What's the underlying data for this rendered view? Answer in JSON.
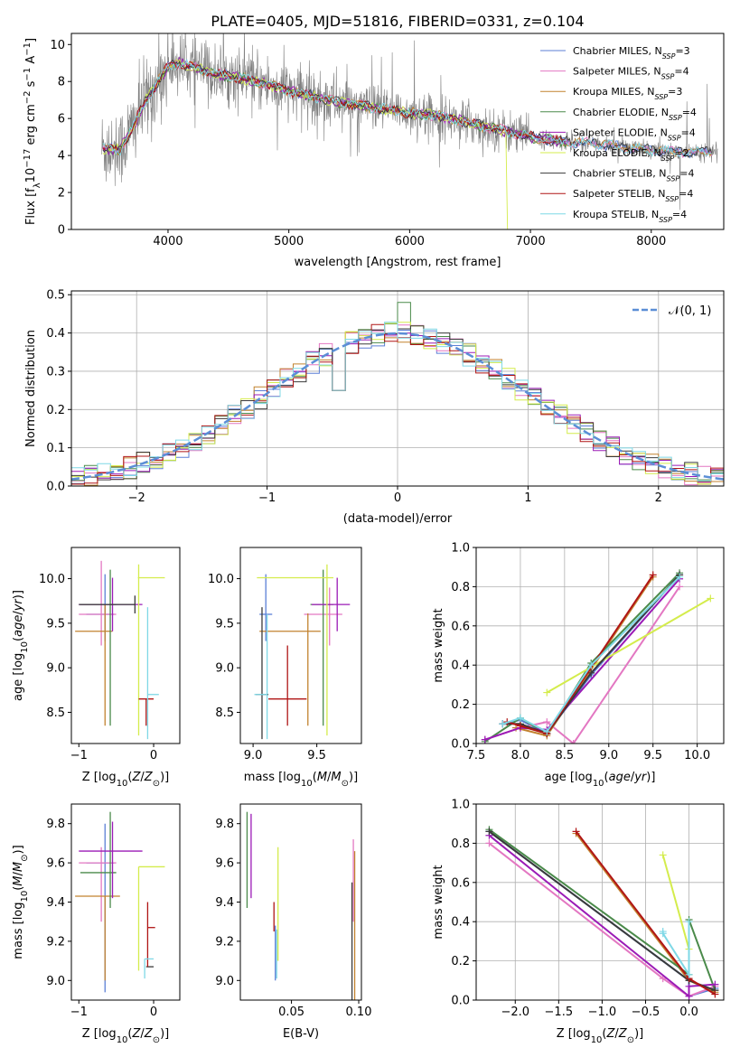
{
  "palette": {
    "Chabrier MILES": "#5b7fd6",
    "Salpeter MILES": "#e377c2",
    "Kroupa MILES": "#c2822f",
    "Chabrier ELODIE": "#4a8a4a",
    "Salpeter ELODIE": "#9b1bb6",
    "Kroupa ELODIE": "#d4ec4c",
    "Chabrier STELIB": "#3a3a3a",
    "Salpeter STELIB": "#b01515",
    "Kroupa STELIB": "#7fd8e6",
    "data": "#808080",
    "normal": "#5b8ed6"
  },
  "chart_data": [
    {
      "id": "spectrum",
      "type": "line",
      "title": "PLATE=0405, MJD=51816, FIBERID=0331, z=0.104",
      "xlabel": "wavelength [Angstrom, rest frame]",
      "ylabel": "Flux [f_λ10^-17 erg cm^-2 s^-1 A^-1]",
      "xlim": [
        3200,
        8600
      ],
      "ylim": [
        0,
        10.6
      ],
      "xticks": [
        4000,
        5000,
        6000,
        7000,
        8000
      ],
      "yticks": [
        0,
        2,
        4,
        6,
        8,
        10
      ],
      "grid": false,
      "legend_position": "top-right",
      "legend": [
        {
          "name": "Chabrier MILES, N",
          "sub": "SSP",
          "tail": "=3"
        },
        {
          "name": "Salpeter MILES, N",
          "sub": "SSP",
          "tail": "=4"
        },
        {
          "name": "Kroupa MILES, N",
          "sub": "SSP",
          "tail": "=3"
        },
        {
          "name": "Chabrier ELODIE, N",
          "sub": "SSP",
          "tail": "=4"
        },
        {
          "name": "Salpeter ELODIE, N",
          "sub": "SSP",
          "tail": "=4"
        },
        {
          "name": "Kroupa ELODIE, N",
          "sub": "SSP",
          "tail": "=2"
        },
        {
          "name": "Chabrier STELIB, N",
          "sub": "SSP",
          "tail": "=4"
        },
        {
          "name": "Salpeter STELIB, N",
          "sub": "SSP",
          "tail": "=4"
        },
        {
          "name": "Kroupa STELIB, N",
          "sub": "SSP",
          "tail": "=4"
        }
      ],
      "model_continuum": {
        "x": [
          3450,
          3600,
          3700,
          3800,
          3900,
          4000,
          4100,
          4200,
          4300,
          4400,
          4600,
          4800,
          5000,
          5200,
          5400,
          5600,
          5800,
          6000,
          6200,
          6400,
          6600,
          6800,
          7000,
          7200,
          7400,
          7600,
          7800,
          8000,
          8200,
          8400
        ],
        "y": [
          4.4,
          4.3,
          5.4,
          6.8,
          7.8,
          8.8,
          9.0,
          8.8,
          8.6,
          8.4,
          8.2,
          7.9,
          7.5,
          7.2,
          6.9,
          6.7,
          6.5,
          6.3,
          6.2,
          5.9,
          5.6,
          5.3,
          5.0,
          4.8,
          4.7,
          4.6,
          4.4,
          4.3,
          4.2,
          4.2
        ]
      }
    },
    {
      "id": "residuals",
      "type": "step",
      "xlabel": "(data-model)/error",
      "ylabel": "Normed distribution",
      "xlim": [
        -2.5,
        2.5
      ],
      "ylim": [
        0,
        0.51
      ],
      "xticks": [
        -2,
        -1,
        0,
        1,
        2
      ],
      "yticks": [
        0.0,
        0.1,
        0.2,
        0.3,
        0.4,
        0.5
      ],
      "grid": true,
      "legend_position": "top-right",
      "legend": [
        "𝒩(0, 1)"
      ],
      "bin_width": 0.1,
      "bin_start": -2.5
    },
    {
      "id": "age_vs_Z",
      "type": "errorbar",
      "xlabel": "Z [log10(Z/Z⊙)]",
      "ylabel": "age [log10(age/yr)]",
      "xlim": [
        -1.1,
        0.35
      ],
      "ylim": [
        8.15,
        10.35
      ],
      "xticks": [
        -1,
        0
      ],
      "yticks": [
        8.5,
        9.0,
        9.5,
        10.0
      ],
      "grid": false,
      "points": [
        {
          "model": "Chabrier MILES",
          "x": -0.65,
          "y": 9.6,
          "xerr": [
            0.25,
            0.12
          ],
          "yerr": [
            0.3,
            0.45
          ]
        },
        {
          "model": "Salpeter MILES",
          "x": -0.7,
          "y": 9.6,
          "xerr": [
            0.3,
            0.2
          ],
          "yerr": [
            0.35,
            0.6
          ]
        },
        {
          "model": "Kroupa MILES",
          "x": -0.65,
          "y": 9.41,
          "xerr": [
            0.4,
            0.1
          ],
          "yerr": [
            1.06,
            0.3
          ]
        },
        {
          "model": "Chabrier ELODIE",
          "x": -0.58,
          "y": 9.71,
          "xerr": [
            0.4,
            0.08
          ],
          "yerr": [
            1.36,
            0.39
          ]
        },
        {
          "model": "Salpeter ELODIE",
          "x": -0.55,
          "y": 9.71,
          "xerr": [
            0.45,
            0.4
          ],
          "yerr": [
            0.3,
            0.3
          ]
        },
        {
          "model": "Kroupa ELODIE",
          "x": -0.2,
          "y": 10.01,
          "xerr": [
            0.01,
            0.35
          ],
          "yerr": [
            1.77,
            0.15
          ]
        },
        {
          "model": "Chabrier STELIB",
          "x": -0.25,
          "y": 9.71,
          "xerr": [
            0.75,
            0.0
          ],
          "yerr": [
            0.1,
            0.1
          ]
        },
        {
          "model": "Salpeter STELIB",
          "x": -0.1,
          "y": 8.65,
          "xerr": [
            0.1,
            0.1
          ],
          "yerr": [
            0.3,
            0.0
          ]
        },
        {
          "model": "Kroupa STELIB",
          "x": -0.08,
          "y": 8.7,
          "xerr": [
            0.0,
            0.15
          ],
          "yerr": [
            0.5,
            0.98
          ]
        }
      ]
    },
    {
      "id": "age_vs_mass",
      "type": "errorbar",
      "xlabel": "mass [log10(M/M⊙)]",
      "ylabel": "",
      "xlim": [
        8.9,
        9.85
      ],
      "ylim": [
        8.15,
        10.35
      ],
      "xticks": [
        9.0,
        9.5
      ],
      "yticks": [
        8.5,
        9.0,
        9.5,
        10.0
      ],
      "grid": false,
      "points": [
        {
          "model": "Chabrier MILES",
          "x": 9.1,
          "y": 9.6,
          "xerr": [
            0.05,
            0.05
          ],
          "yerr": [
            0.3,
            0.45
          ]
        },
        {
          "model": "Salpeter MILES",
          "x": 9.6,
          "y": 9.6,
          "xerr": [
            0.2,
            0.1
          ],
          "yerr": [
            0.35,
            0.3
          ]
        },
        {
          "model": "Kroupa MILES",
          "x": 9.43,
          "y": 9.41,
          "xerr": [
            0.38,
            0.1
          ],
          "yerr": [
            1.06,
            0.2
          ]
        },
        {
          "model": "Chabrier ELODIE",
          "x": 9.55,
          "y": 9.71,
          "xerr": [
            0.1,
            0.08
          ],
          "yerr": [
            1.36,
            0.39
          ]
        },
        {
          "model": "Salpeter ELODIE",
          "x": 9.66,
          "y": 9.71,
          "xerr": [
            0.2,
            0.1
          ],
          "yerr": [
            0.3,
            0.3
          ]
        },
        {
          "model": "Kroupa ELODIE",
          "x": 9.58,
          "y": 10.01,
          "xerr": [
            0.55,
            0.05
          ],
          "yerr": [
            1.77,
            0.15
          ]
        },
        {
          "model": "Chabrier STELIB",
          "x": 9.07,
          "y": 8.7,
          "xerr": [
            0.05,
            0.05
          ],
          "yerr": [
            0.5,
            0.98
          ]
        },
        {
          "model": "Salpeter STELIB",
          "x": 9.27,
          "y": 8.65,
          "xerr": [
            0.15,
            0.15
          ],
          "yerr": [
            0.3,
            0.6
          ]
        },
        {
          "model": "Kroupa STELIB",
          "x": 9.11,
          "y": 8.7,
          "xerr": [
            0.1,
            0.0
          ],
          "yerr": [
            0.5,
            0.9
          ]
        }
      ]
    },
    {
      "id": "weight_vs_age",
      "type": "line",
      "xlabel": "age [log10(age/yr)]",
      "ylabel": "mass weight",
      "xlim": [
        7.5,
        10.3
      ],
      "ylim": [
        0,
        1
      ],
      "xticks": [
        7.5,
        8.0,
        8.5,
        9.0,
        9.5,
        10.0
      ],
      "yticks": [
        0.0,
        0.2,
        0.4,
        0.6,
        0.8,
        1.0
      ],
      "grid": true,
      "series": [
        {
          "model": "Chabrier MILES",
          "x": [
            7.8,
            8.0,
            8.3,
            8.8,
            9.8
          ],
          "y": [
            0.1,
            0.12,
            0.05,
            0.35,
            0.86
          ]
        },
        {
          "model": "Salpeter MILES",
          "x": [
            7.6,
            8.0,
            8.3,
            8.6,
            9.8
          ],
          "y": [
            0.02,
            0.08,
            0.11,
            0.0,
            0.8
          ]
        },
        {
          "model": "Kroupa MILES",
          "x": [
            7.95,
            8.3,
            9.5
          ],
          "y": [
            0.08,
            0.04,
            0.85
          ]
        },
        {
          "model": "Chabrier ELODIE",
          "x": [
            7.6,
            8.0,
            8.3,
            8.8,
            9.8
          ],
          "y": [
            0.01,
            0.13,
            0.05,
            0.41,
            0.87
          ]
        },
        {
          "model": "Salpeter ELODIE",
          "x": [
            7.6,
            8.0,
            8.3,
            9.8
          ],
          "y": [
            0.02,
            0.08,
            0.07,
            0.84
          ]
        },
        {
          "model": "Kroupa ELODIE",
          "x": [
            8.3,
            10.15
          ],
          "y": [
            0.26,
            0.74
          ]
        },
        {
          "model": "Chabrier STELIB",
          "x": [
            7.8,
            8.0,
            8.3,
            8.8,
            9.8
          ],
          "y": [
            0.1,
            0.1,
            0.05,
            0.36,
            0.86
          ]
        },
        {
          "model": "Salpeter STELIB",
          "x": [
            7.85,
            8.0,
            8.3,
            9.5
          ],
          "y": [
            0.11,
            0.09,
            0.05,
            0.86
          ]
        },
        {
          "model": "Kroupa STELIB",
          "x": [
            7.8,
            8.0,
            8.3,
            8.8,
            9.8
          ],
          "y": [
            0.1,
            0.13,
            0.06,
            0.4,
            0.85
          ]
        }
      ]
    },
    {
      "id": "mass_vs_Z",
      "type": "errorbar",
      "xlabel": "Z [log10(Z/Z⊙)]",
      "ylabel": "mass [log10(M/M⊙)]",
      "xlim": [
        -1.1,
        0.35
      ],
      "ylim": [
        8.9,
        9.9
      ],
      "xticks": [
        -1,
        0
      ],
      "yticks": [
        9.0,
        9.2,
        9.4,
        9.6,
        9.8
      ],
      "grid": false,
      "points": [
        {
          "model": "Chabrier MILES",
          "x": -0.65,
          "y": 9.6,
          "xerr": [
            0.25,
            0.12
          ],
          "yerr": [
            0.66,
            0.2
          ]
        },
        {
          "model": "Salpeter MILES",
          "x": -0.7,
          "y": 9.6,
          "xerr": [
            0.3,
            0.2
          ],
          "yerr": [
            0.3,
            0.08
          ]
        },
        {
          "model": "Kroupa MILES",
          "x": -0.65,
          "y": 9.43,
          "xerr": [
            0.4,
            0.2
          ],
          "yerr": [
            0.43,
            0.0
          ]
        },
        {
          "model": "Chabrier ELODIE",
          "x": -0.58,
          "y": 9.55,
          "xerr": [
            0.4,
            0.08
          ],
          "yerr": [
            0.18,
            0.31
          ]
        },
        {
          "model": "Salpeter ELODIE",
          "x": -0.55,
          "y": 9.66,
          "xerr": [
            0.45,
            0.4
          ],
          "yerr": [
            0.24,
            0.15
          ]
        },
        {
          "model": "Kroupa ELODIE",
          "x": -0.2,
          "y": 9.58,
          "xerr": [
            0.0,
            0.35
          ],
          "yerr": [
            0.53,
            0.0
          ]
        },
        {
          "model": "Chabrier STELIB",
          "x": -0.1,
          "y": 9.07,
          "xerr": [
            0.0,
            0.1
          ],
          "yerr": [
            0.0,
            0.0
          ]
        },
        {
          "model": "Salpeter STELIB",
          "x": -0.08,
          "y": 9.27,
          "xerr": [
            0.0,
            0.1
          ],
          "yerr": [
            0.2,
            0.13
          ]
        },
        {
          "model": "Kroupa STELIB",
          "x": -0.12,
          "y": 9.11,
          "xerr": [
            0.0,
            0.12
          ],
          "yerr": [
            0.1,
            0.0
          ]
        }
      ]
    },
    {
      "id": "mass_vs_ebv",
      "type": "errorbar",
      "xlabel": "E(B-V)",
      "ylabel": "",
      "xlim": [
        0.012,
        0.102
      ],
      "ylim": [
        8.9,
        9.9
      ],
      "xticks": [
        0.05,
        0.1
      ],
      "yticks": [
        9.0,
        9.2,
        9.4,
        9.6,
        9.8
      ],
      "grid": false,
      "points": [
        {
          "model": "Chabrier ELODIE",
          "x": 0.017,
          "y": 9.55,
          "yerr": [
            0.18,
            0.31
          ]
        },
        {
          "model": "Salpeter ELODIE",
          "x": 0.02,
          "y": 9.66,
          "yerr": [
            0.24,
            0.19
          ]
        },
        {
          "model": "Salpeter STELIB",
          "x": 0.037,
          "y": 9.35,
          "yerr": [
            0.1,
            0.05
          ]
        },
        {
          "model": "Chabrier MILES",
          "x": 0.038,
          "y": 9.1,
          "yerr": [
            0.1,
            0.18
          ]
        },
        {
          "model": "Kroupa STELIB",
          "x": 0.039,
          "y": 9.11,
          "yerr": [
            0.1,
            0.15
          ]
        },
        {
          "model": "Kroupa ELODIE",
          "x": 0.04,
          "y": 9.45,
          "yerr": [
            0.35,
            0.23
          ]
        },
        {
          "model": "Salpeter MILES",
          "x": 0.096,
          "y": 9.6,
          "yerr": [
            0.3,
            0.12
          ]
        },
        {
          "model": "Kroupa MILES",
          "x": 0.097,
          "y": 9.43,
          "yerr": [
            0.53,
            0.23
          ]
        },
        {
          "model": "Chabrier STELIB",
          "x": 0.095,
          "y": 9.2,
          "yerr": [
            0.3,
            0.3
          ]
        }
      ]
    },
    {
      "id": "weight_vs_Z",
      "type": "line",
      "xlabel": "Z [log10(Z/Z⊙)]",
      "ylabel": "mass weight",
      "xlim": [
        -2.45,
        0.4
      ],
      "ylim": [
        0,
        1
      ],
      "xticks": [
        -2.0,
        -1.5,
        -1.0,
        -0.5,
        0.0
      ],
      "yticks": [
        0.0,
        0.2,
        0.4,
        0.6,
        0.8,
        1.0
      ],
      "grid": true,
      "series": [
        {
          "model": "Chabrier MILES",
          "x": [
            -2.3,
            0.0,
            0.0,
            0.3
          ],
          "y": [
            0.86,
            0.1,
            0.02,
            0.06
          ]
        },
        {
          "model": "Salpeter MILES",
          "x": [
            -2.3,
            -0.3,
            0.0,
            0.3
          ],
          "y": [
            0.8,
            0.11,
            0.02,
            0.07
          ]
        },
        {
          "model": "Kroupa MILES",
          "x": [
            -1.3,
            0.0,
            0.3
          ],
          "y": [
            0.85,
            0.1,
            0.04
          ]
        },
        {
          "model": "Chabrier ELODIE",
          "x": [
            -2.3,
            0.0,
            0.0,
            0.3
          ],
          "y": [
            0.87,
            0.13,
            0.41,
            0.05
          ]
        },
        {
          "model": "Salpeter ELODIE",
          "x": [
            -2.3,
            0.0,
            0.0,
            0.3
          ],
          "y": [
            0.84,
            0.02,
            0.07,
            0.08
          ]
        },
        {
          "model": "Kroupa ELODIE",
          "x": [
            -0.3,
            0.0
          ],
          "y": [
            0.74,
            0.26
          ]
        },
        {
          "model": "Chabrier STELIB",
          "x": [
            -2.3,
            0.0,
            0.3
          ],
          "y": [
            0.86,
            0.1,
            0.05
          ]
        },
        {
          "model": "Salpeter STELIB",
          "x": [
            -1.3,
            0.0,
            0.3
          ],
          "y": [
            0.86,
            0.11,
            0.03
          ]
        },
        {
          "model": "Kroupa STELIB",
          "x": [
            -0.3,
            -0.3,
            0.0,
            0.0
          ],
          "y": [
            0.35,
            0.34,
            0.13,
            0.4
          ]
        }
      ]
    }
  ]
}
